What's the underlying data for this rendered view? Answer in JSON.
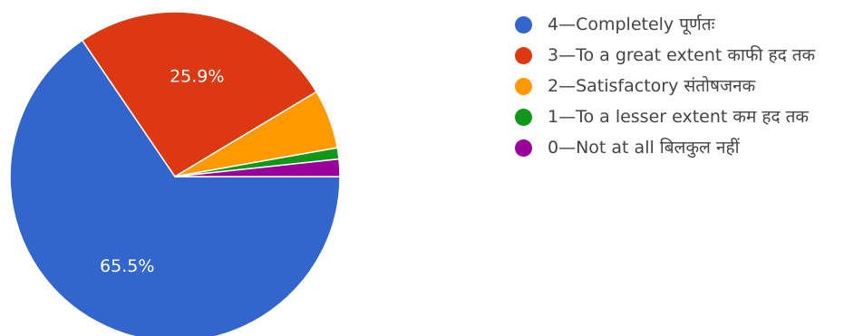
{
  "chart_data": {
    "type": "pie",
    "categories": [
      "4—Completely पूर्णतः",
      "3—To a great extent काफी हद तक",
      "2—Satisfactory संतोषजनक",
      "1—To a lesser extent कम हद तक",
      "0—Not at all बिलकुल नहीं"
    ],
    "values": [
      65.5,
      25.9,
      5.8,
      1.1,
      1.7
    ],
    "data_labels": [
      "65.5%",
      "25.9%",
      "",
      "",
      ""
    ],
    "colors": [
      "#3366cc",
      "#dc3912",
      "#ff9900",
      "#109618",
      "#990099"
    ],
    "legend_position": "right"
  }
}
